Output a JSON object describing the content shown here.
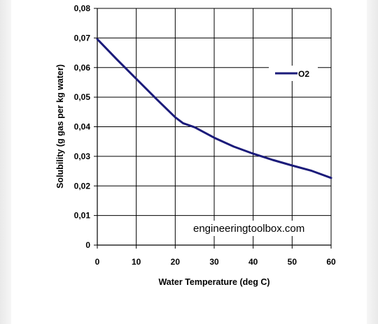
{
  "chart_data": {
    "type": "line",
    "title": "",
    "xlabel": "Water Temperature (deg C)",
    "ylabel": "Solubility (g gas per kg water)",
    "xlim": [
      0,
      60
    ],
    "ylim": [
      0,
      0.08
    ],
    "x_ticks": [
      0,
      10,
      20,
      30,
      40,
      50,
      60
    ],
    "x_tick_labels": [
      "0",
      "10",
      "20",
      "30",
      "40",
      "50",
      "60"
    ],
    "y_ticks": [
      0,
      0.01,
      0.02,
      0.03,
      0.04,
      0.05,
      0.06,
      0.07,
      0.08
    ],
    "y_tick_labels": [
      "0",
      "0,01",
      "0,02",
      "0,03",
      "0,04",
      "0,05",
      "0,06",
      "0,07",
      "0,08"
    ],
    "grid": true,
    "legend_position": "top-right",
    "series": [
      {
        "name": "O2",
        "color": "#1b1b7a",
        "x": [
          0,
          5,
          10,
          15,
          20,
          22,
          25,
          30,
          35,
          40,
          45,
          50,
          55,
          60
        ],
        "y": [
          0.0696,
          0.0628,
          0.0562,
          0.0496,
          0.0432,
          0.0412,
          0.0398,
          0.0363,
          0.0333,
          0.0309,
          0.0288,
          0.0269,
          0.0251,
          0.0227
        ]
      }
    ],
    "annotations": [
      "engineeringtoolbox.com"
    ]
  }
}
